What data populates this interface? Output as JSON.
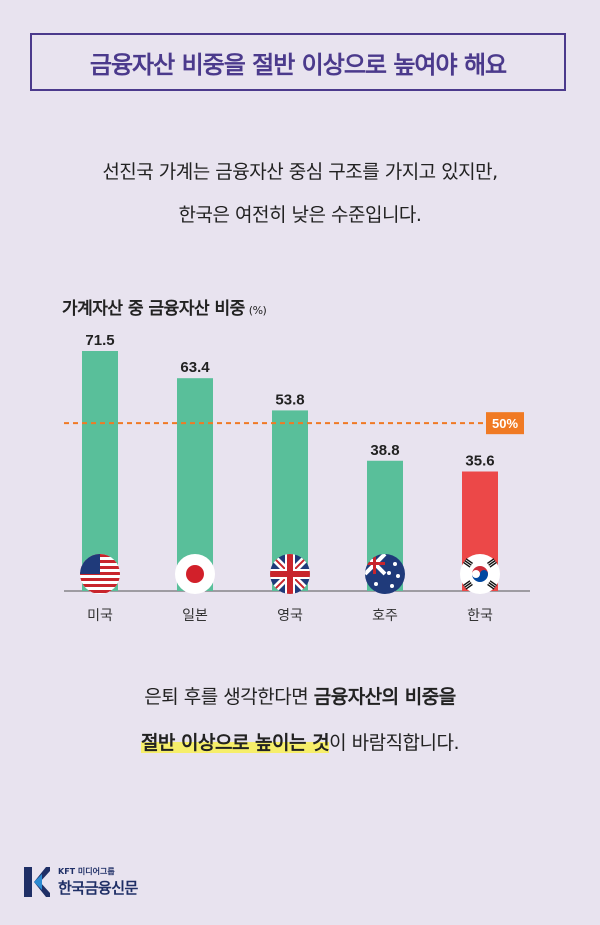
{
  "title": "금융자산 비중을 절반 이상으로 높여야 해요",
  "subtitle": {
    "line1": "선진국 가계는 금융자산 중심 구조를 가지고 있지만,",
    "line2": "한국은 여전히 낮은 수준입니다."
  },
  "chart_title": "가계자산 중 금융자산 비중",
  "chart_unit": "(%)",
  "chart_data": {
    "type": "bar",
    "title": "가계자산 중 금융자산 비중",
    "categories": [
      "미국",
      "일본",
      "영국",
      "호주",
      "한국"
    ],
    "values": [
      71.5,
      63.4,
      53.8,
      38.8,
      35.6
    ],
    "value_labels": [
      "71.5",
      "63.4",
      "53.8",
      "38.8",
      "35.6"
    ],
    "reference_line": {
      "value": 50,
      "label": "50%"
    },
    "ylim": [
      0,
      80
    ],
    "grid": false,
    "colors": {
      "default": "#59bf9a",
      "highlight": "#ec4848",
      "reference": "#f07a24"
    },
    "highlight_category": "한국"
  },
  "flags": [
    "us-flag-icon",
    "japan-flag-icon",
    "uk-flag-icon",
    "australia-flag-icon",
    "korea-flag-icon"
  ],
  "bottom": {
    "line1_a": "은퇴 후를 생각한다면 ",
    "line1_b": "금융자산의 비중",
    "line1_c": "을",
    "line2_a": "절반 이상으로 높이는 것",
    "line2_b": "이 바람직합니다."
  },
  "logo": {
    "small": "KFT 미디어그룹",
    "big": "한국금융신문"
  },
  "colors": {
    "accent": "#4b3a8c",
    "background": "#e8e3ef"
  }
}
